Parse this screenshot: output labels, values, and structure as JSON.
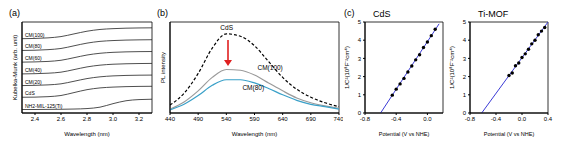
{
  "chart_data": [
    {
      "type": "line",
      "label": "(a)",
      "xlabel": "Wavelength (nm)",
      "ylabel": "Kubelka-Munk (arb. unit)",
      "x": [
        2.3,
        2.4,
        2.5,
        2.6,
        2.7,
        2.8,
        2.9,
        3.0,
        3.1,
        3.2,
        3.3
      ],
      "xlim": [
        2.3,
        3.3
      ],
      "xticks": [
        2.4,
        2.6,
        2.8,
        {
          "value": 3,
          "label": "3.0"
        },
        3.2
      ],
      "ylim": [
        0,
        7.8
      ],
      "tick_labels": "x",
      "series": [
        {
          "name": "CM(100)",
          "color": "#222222",
          "values": [
            6.37,
            6.39,
            6.44,
            6.55,
            6.78,
            7.01,
            7.16,
            7.23,
            7.27,
            7.29,
            7.3
          ]
        },
        {
          "name": "CM(80)",
          "color": "#222222",
          "values": [
            5.36,
            5.38,
            5.43,
            5.53,
            5.76,
            5.99,
            6.14,
            6.21,
            6.25,
            6.27,
            6.28
          ]
        },
        {
          "name": "CM(60)",
          "color": "#222222",
          "values": [
            4.36,
            4.38,
            4.42,
            4.52,
            4.74,
            4.97,
            5.12,
            5.2,
            5.24,
            5.26,
            5.27
          ]
        },
        {
          "name": "CM(40)",
          "color": "#222222",
          "values": [
            3.35,
            3.37,
            3.41,
            3.5,
            3.72,
            3.95,
            4.1,
            4.18,
            4.22,
            4.24,
            4.25
          ]
        },
        {
          "name": "CM(20)",
          "color": "#222222",
          "values": [
            2.35,
            2.37,
            2.41,
            2.5,
            2.72,
            2.95,
            3.1,
            3.18,
            3.22,
            3.24,
            3.25
          ]
        },
        {
          "name": "CdS",
          "color": "#222222",
          "values": [
            1.35,
            1.36,
            1.4,
            1.5,
            1.75,
            2.0,
            2.15,
            2.22,
            2.26,
            2.28,
            2.29
          ]
        },
        {
          "name": "NH2-MIL-125(Ti)",
          "color": "#222222",
          "values": [
            0.3,
            0.3,
            0.31,
            0.32,
            0.34,
            0.38,
            0.5,
            0.8,
            1.05,
            1.15,
            1.18
          ]
        }
      ]
    },
    {
      "type": "line",
      "label": "(b)",
      "xlabel": "Wavelength (nm)",
      "ylabel": "PL intensity",
      "x": [
        440,
        465,
        490,
        515,
        540,
        565,
        590,
        615,
        640,
        665,
        690,
        715,
        740
      ],
      "xlim": [
        440,
        740
      ],
      "xticks": [
        440,
        490,
        540,
        590,
        640,
        690,
        740
      ],
      "ylim": [
        0,
        1.15
      ],
      "tick_labels": "x",
      "series": [
        {
          "name": "CdS",
          "color": "#000000",
          "line_style": "dashed",
          "values": [
            0.1,
            0.25,
            0.5,
            0.82,
            1.0,
            0.97,
            0.85,
            0.65,
            0.45,
            0.3,
            0.2,
            0.13,
            0.08
          ]
        },
        {
          "name": "CM(100)",
          "color": "#9a9a9a",
          "line_style": "solid",
          "values": [
            0.05,
            0.14,
            0.28,
            0.45,
            0.55,
            0.54,
            0.48,
            0.38,
            0.28,
            0.19,
            0.13,
            0.09,
            0.06
          ]
        },
        {
          "name": "CM(80)",
          "color": "#3aa0c8",
          "line_style": "solid",
          "values": [
            0.04,
            0.11,
            0.22,
            0.35,
            0.42,
            0.42,
            0.38,
            0.31,
            0.23,
            0.16,
            0.11,
            0.08,
            0.05
          ]
        }
      ]
    },
    {
      "type": "scatter",
      "label": "(c)",
      "title": "CdS",
      "xlabel": "Potential (V vs NHE)",
      "ylabel": "1/C²(10⁸F⁻²cm⁴)",
      "xlim": [
        -0.8,
        0.2
      ],
      "xticks": [
        -0.8,
        -0.4,
        {
          "value": 0,
          "label": "0.0"
        }
      ],
      "ylim": [
        0,
        5
      ],
      "yticks": [
        0,
        1,
        2,
        3,
        4,
        5
      ],
      "series": [
        {
          "type": "scatter",
          "color": "#000000",
          "marker": "circle",
          "x": [
            -0.45,
            -0.4,
            -0.35,
            -0.3,
            -0.25,
            -0.2,
            -0.15,
            -0.1,
            -0.05,
            0,
            0.05,
            0.1
          ],
          "values": [
            0.98,
            1.31,
            1.6,
            1.9,
            2.25,
            2.58,
            2.92,
            3.2,
            3.6,
            3.9,
            4.25,
            4.6
          ]
        },
        {
          "type": "line",
          "color": "#3b3bd6",
          "x": [
            -0.6,
            0.15
          ],
          "values": [
            0,
            4.9
          ]
        }
      ]
    },
    {
      "type": "scatter",
      "title": "Ti-MOF",
      "xlabel": "Potential (V vs NHE)",
      "ylabel": "1/C²(10⁸F⁻²cm⁴)",
      "xlim": [
        -0.8,
        0.4
      ],
      "xticks": [
        -0.8,
        -0.4,
        {
          "value": 0,
          "label": "0.0"
        },
        0.4
      ],
      "ylim": [
        0,
        5
      ],
      "yticks": [
        0,
        1,
        2,
        3,
        4,
        5
      ],
      "series": [
        {
          "type": "scatter",
          "color": "#000000",
          "marker": "circle",
          "x": [
            -0.2,
            -0.15,
            -0.1,
            -0.05,
            0,
            0.05,
            0.1,
            0.15,
            0.2,
            0.25,
            0.3,
            0.35
          ],
          "values": [
            2.06,
            2.2,
            2.6,
            2.75,
            3.05,
            3.25,
            3.5,
            3.8,
            4.0,
            4.3,
            4.5,
            4.7
          ]
        },
        {
          "type": "line",
          "color": "#3b3bd6",
          "x": [
            -0.62,
            0.4
          ],
          "values": [
            0,
            5.0
          ]
        }
      ]
    }
  ]
}
